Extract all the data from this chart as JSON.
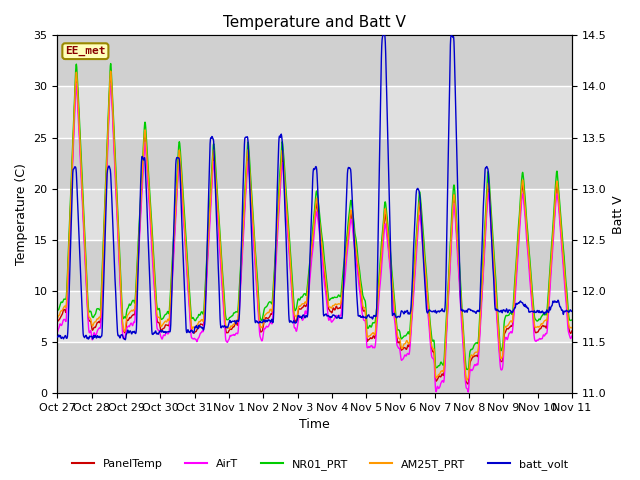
{
  "title": "Temperature and Batt V",
  "xlabel": "Time",
  "ylabel_left": "Temperature (C)",
  "ylabel_right": "Batt V",
  "station_label": "EE_met",
  "ylim_left": [
    0,
    35
  ],
  "ylim_right": [
    11.0,
    14.5
  ],
  "xtick_labels": [
    "Oct 27",
    "Oct 28",
    "Oct 29",
    "Oct 30",
    "Oct 31",
    "Nov 1",
    "Nov 2",
    "Nov 3",
    "Nov 4",
    "Nov 5",
    "Nov 6",
    "Nov 7",
    "Nov 8",
    "Nov 9",
    "Nov 10",
    "Nov 11"
  ],
  "yticks_left": [
    0,
    5,
    10,
    15,
    20,
    25,
    30,
    35
  ],
  "yticks_right": [
    11.0,
    11.5,
    12.0,
    12.5,
    13.0,
    13.5,
    14.0,
    14.5
  ],
  "legend_entries": [
    {
      "label": "PanelTemp",
      "color": "#cc0000"
    },
    {
      "label": "AirT",
      "color": "#ff00ff"
    },
    {
      "label": "NR01_PRT",
      "color": "#00cc00"
    },
    {
      "label": "AM25T_PRT",
      "color": "#ff9900"
    },
    {
      "label": "batt_volt",
      "color": "#0000cc"
    }
  ],
  "background_color": "#ffffff",
  "plot_bg_light": "#d8d8d8",
  "plot_bg_dark": "#c0c0c0",
  "grid_color": "#ffffff",
  "band_colors": [
    "#d8d8d8",
    "#c8c8c8"
  ],
  "linewidth": 1.0
}
